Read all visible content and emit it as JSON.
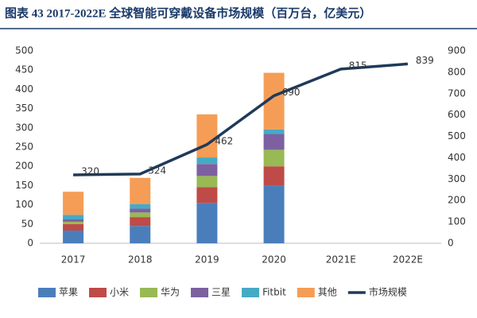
{
  "chart_data": {
    "type": "bar",
    "title": "图表 43   2017-2022E 全球智能可穿戴设备市场规模（百万台，亿美元）",
    "categories": [
      "2017",
      "2018",
      "2019",
      "2020",
      "2021E",
      "2022E"
    ],
    "ylim": [
      0,
      500
    ],
    "yticks": [
      0,
      50,
      100,
      150,
      200,
      250,
      300,
      350,
      400,
      450,
      500
    ],
    "y2lim": [
      0,
      900
    ],
    "y2ticks": [
      0,
      100,
      200,
      300,
      400,
      500,
      600,
      700,
      800,
      900
    ],
    "stacked": true,
    "legend": "bottom",
    "series": [
      {
        "name": "苹果",
        "color": "#4a7ebb",
        "values": [
          33,
          45,
          105,
          150,
          null,
          null
        ]
      },
      {
        "name": "小米",
        "color": "#be4b48",
        "values": [
          17,
          23,
          41,
          50,
          null,
          null
        ]
      },
      {
        "name": "华为",
        "color": "#98b954",
        "values": [
          6,
          12,
          29,
          43,
          null,
          null
        ]
      },
      {
        "name": "三星",
        "color": "#7d60a0",
        "values": [
          6,
          10,
          31,
          41,
          null,
          null
        ]
      },
      {
        "name": "Fitbit",
        "color": "#46aac5",
        "values": [
          12,
          12,
          17,
          12,
          null,
          null
        ]
      },
      {
        "name": "其他",
        "color": "#f59d56",
        "values": [
          60,
          68,
          112,
          147,
          null,
          null
        ]
      },
      {
        "name": "市场规模",
        "color": "#1f3a5a",
        "type": "line",
        "axis": "y2",
        "values": [
          320,
          324,
          462,
          690,
          815,
          839
        ]
      }
    ]
  }
}
